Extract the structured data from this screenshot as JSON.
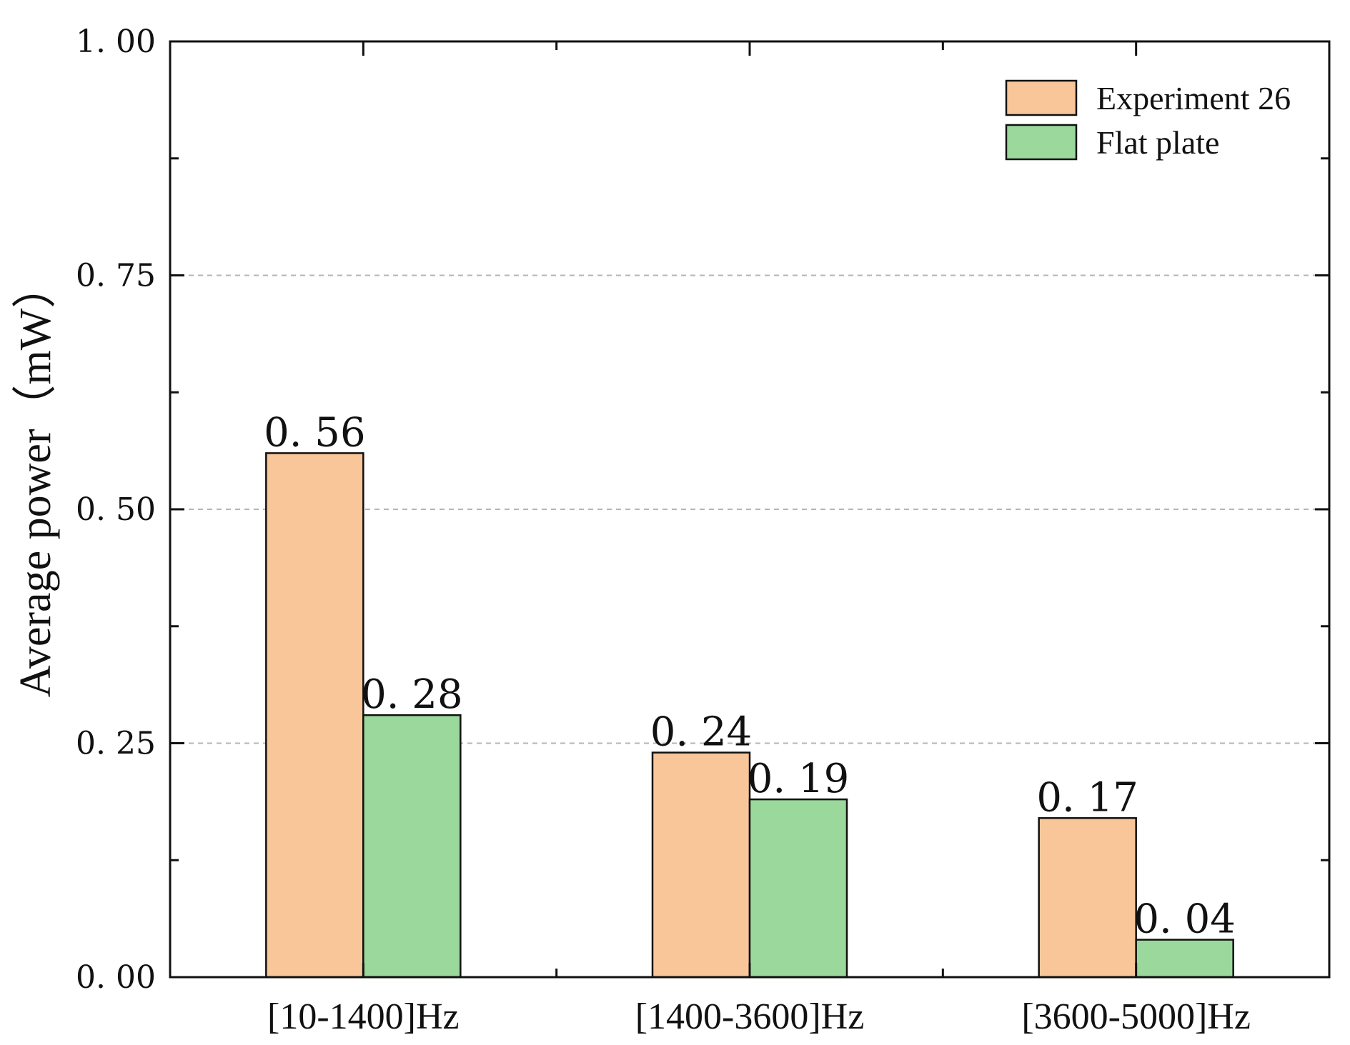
{
  "chart_data": {
    "type": "bar",
    "title": "",
    "xlabel": "",
    "ylabel": "Average power（mW）",
    "ylim": [
      0,
      1.0
    ],
    "yticks": [
      0.0,
      0.25,
      0.5,
      0.75,
      1.0
    ],
    "ytick_labels": [
      "0. 00",
      "0. 25",
      "0. 50",
      "0. 75",
      "1. 00"
    ],
    "grid": "horizontal dashed at major ticks",
    "legend_position": "top-right",
    "categories": [
      "[10-1400]Hz",
      "[1400-3600]Hz",
      "[3600-5000]Hz"
    ],
    "series": [
      {
        "name": "Experiment 26",
        "color": "#F9C699",
        "values": [
          0.56,
          0.24,
          0.17
        ],
        "value_labels": [
          "0. 56",
          "0. 24",
          "0. 17"
        ]
      },
      {
        "name": "Flat plate",
        "color": "#9BD89B",
        "values": [
          0.28,
          0.19,
          0.04
        ],
        "value_labels": [
          "0. 28",
          "0. 19",
          "0. 04"
        ]
      }
    ]
  }
}
